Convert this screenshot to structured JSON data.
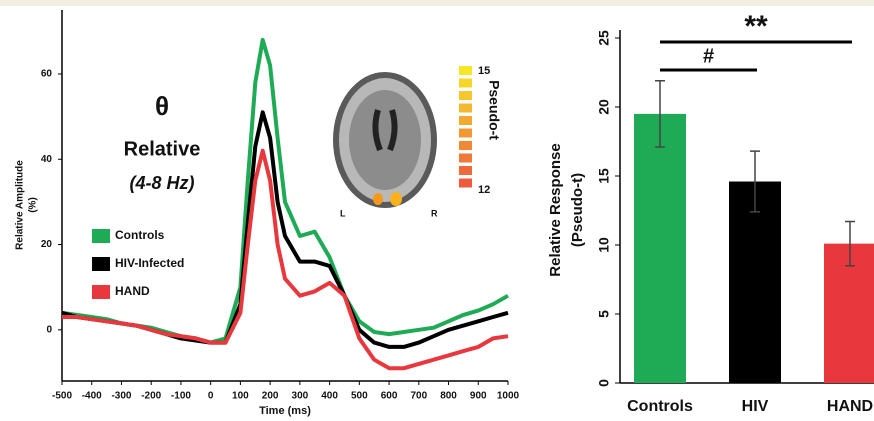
{
  "chart_data": [
    {
      "type": "line",
      "ylabel": [
        "Relative Amplitude",
        "(%)"
      ],
      "xlabel": "Time (ms)",
      "annotations": [
        "θ",
        "Relative",
        "(4-8 Hz)"
      ],
      "x": [
        -500,
        -450,
        -400,
        -350,
        -300,
        -250,
        -200,
        -150,
        -100,
        -50,
        0,
        50,
        100,
        125,
        150,
        175,
        200,
        225,
        250,
        300,
        350,
        400,
        450,
        500,
        550,
        600,
        650,
        700,
        750,
        800,
        850,
        900,
        950,
        1000
      ],
      "series": [
        {
          "name": "Controls",
          "color": "#1faa55",
          "values": [
            4,
            3.5,
            3,
            2.5,
            1.5,
            1,
            0.5,
            -0.5,
            -1.5,
            -2,
            -3,
            -2,
            10,
            35,
            58,
            68,
            62,
            45,
            30,
            22,
            23,
            17,
            8,
            2,
            -0.5,
            -1,
            -0.5,
            0,
            0.5,
            2,
            3.5,
            4.5,
            6,
            8
          ]
        },
        {
          "name": "HIV-Infected",
          "color": "#000000",
          "values": [
            4,
            3,
            2.5,
            2,
            1.5,
            1,
            0,
            -1,
            -2,
            -2.5,
            -3,
            -3,
            6,
            25,
            43,
            51,
            45,
            30,
            22,
            16,
            16,
            15,
            8,
            0,
            -3,
            -4,
            -4,
            -3,
            -1.5,
            0,
            1,
            2,
            3,
            4
          ]
        },
        {
          "name": "HAND",
          "color": "#e8383d",
          "values": [
            3,
            3,
            2.5,
            2,
            1.5,
            1,
            0,
            -1,
            -1.5,
            -2,
            -3,
            -3,
            4,
            20,
            35,
            42,
            35,
            20,
            12,
            8,
            9,
            11,
            8,
            -2,
            -7,
            -9,
            -9,
            -8,
            -7,
            -6,
            -5,
            -4,
            -2,
            -1.5
          ]
        }
      ],
      "xlim": [
        -500,
        1000
      ],
      "xticks": [
        -500,
        -400,
        -300,
        -200,
        -100,
        0,
        100,
        200,
        300,
        400,
        500,
        600,
        700,
        800,
        900,
        1000
      ],
      "ylim": [
        -12,
        75
      ],
      "yticks": [
        0,
        20,
        40,
        60
      ],
      "inset": {
        "left_label": "L",
        "right_label": "R",
        "colorbar": {
          "label": "Pseudo-t",
          "ticks": [
            15,
            12
          ]
        }
      }
    },
    {
      "type": "bar",
      "ylabel": [
        "Relative Response",
        "(Pseudo-t)"
      ],
      "categories": [
        "Controls",
        "HIV",
        "HAND"
      ],
      "values": [
        19.5,
        14.6,
        10.1
      ],
      "errors": [
        2.4,
        2.2,
        1.6
      ],
      "colors": [
        "#1faa55",
        "#000000",
        "#e8383d"
      ],
      "ylim": [
        0,
        25
      ],
      "yticks": [
        0,
        5,
        10,
        15,
        20,
        25
      ],
      "significance": [
        {
          "label": "**",
          "between": [
            "Controls",
            "HAND"
          ]
        },
        {
          "label": "#",
          "between": [
            "Controls",
            "HIV"
          ]
        }
      ]
    }
  ]
}
